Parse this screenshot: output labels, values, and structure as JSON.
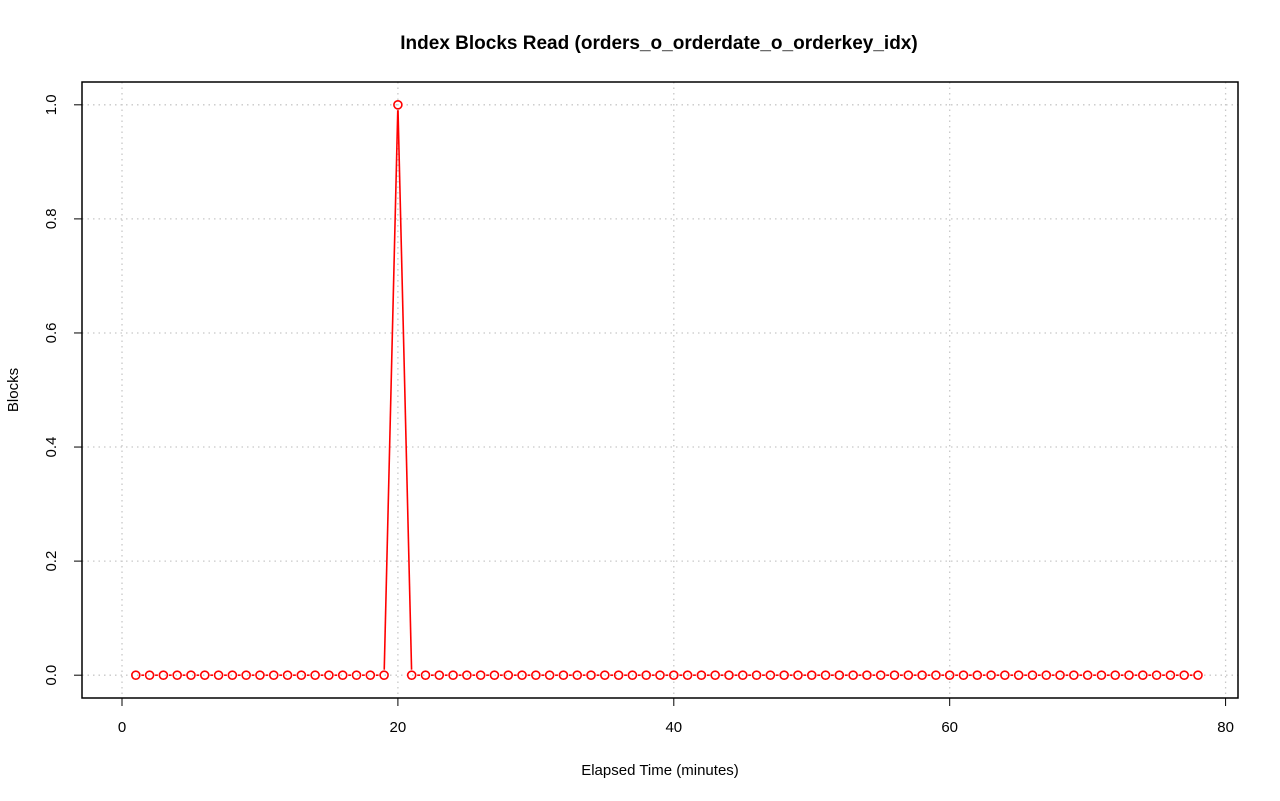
{
  "chart_data": {
    "type": "line",
    "title": "Index Blocks Read (orders_o_orderdate_o_orderkey_idx)",
    "xlabel": "Elapsed Time (minutes)",
    "ylabel": "Blocks",
    "xlim": [
      -2.9,
      80.9
    ],
    "ylim": [
      -0.04,
      1.04
    ],
    "x_ticks": [
      0,
      20,
      40,
      60,
      80
    ],
    "y_ticks": [
      0.0,
      0.2,
      0.4,
      0.6,
      0.8,
      1.0
    ],
    "x_tick_labels": [
      "0",
      "20",
      "40",
      "60",
      "80"
    ],
    "y_tick_labels": [
      "0.0",
      "0.2",
      "0.4",
      "0.6",
      "0.8",
      "1.0"
    ],
    "grid": true,
    "series": [
      {
        "color": "#ff0000",
        "style": "both",
        "x": [
          1,
          2,
          3,
          4,
          5,
          6,
          7,
          8,
          9,
          10,
          11,
          12,
          13,
          14,
          15,
          16,
          17,
          18,
          19,
          20,
          21,
          22,
          23,
          24,
          25,
          26,
          27,
          28,
          29,
          30,
          31,
          32,
          33,
          34,
          35,
          36,
          37,
          38,
          39,
          40,
          41,
          42,
          43,
          44,
          45,
          46,
          47,
          48,
          49,
          50,
          51,
          52,
          53,
          54,
          55,
          56,
          57,
          58,
          59,
          60,
          61,
          62,
          63,
          64,
          65,
          66,
          67,
          68,
          69,
          70,
          71,
          72,
          73,
          74,
          75,
          76,
          77,
          78
        ],
        "values": [
          0,
          0,
          0,
          0,
          0,
          0,
          0,
          0,
          0,
          0,
          0,
          0,
          0,
          0,
          0,
          0,
          0,
          0,
          0,
          1,
          0,
          0,
          0,
          0,
          0,
          0,
          0,
          0,
          0,
          0,
          0,
          0,
          0,
          0,
          0,
          0,
          0,
          0,
          0,
          0,
          0,
          0,
          0,
          0,
          0,
          0,
          0,
          0,
          0,
          0,
          0,
          0,
          0,
          0,
          0,
          0,
          0,
          0,
          0,
          0,
          0,
          0,
          0,
          0,
          0,
          0,
          0,
          0,
          0,
          0,
          0,
          0,
          0,
          0,
          0,
          0,
          0,
          0
        ]
      }
    ]
  }
}
